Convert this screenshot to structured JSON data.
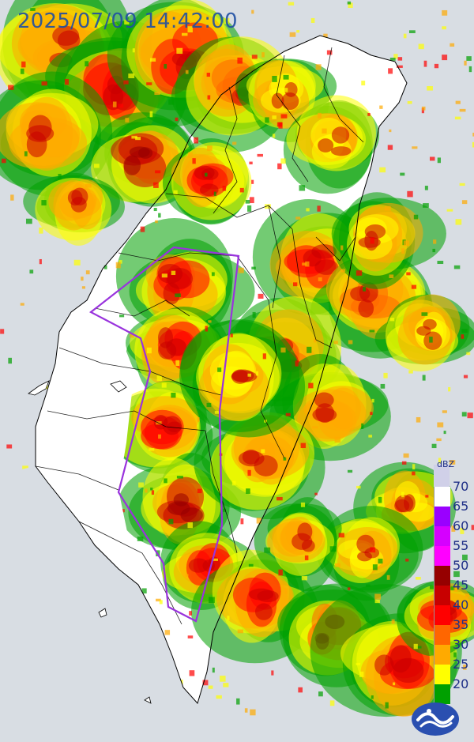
{
  "timestamp": "2025/07/09 14:42:00",
  "legend": {
    "unit": "dBZ",
    "levels": [
      {
        "label": "70",
        "color": "#ffffff"
      },
      {
        "label": "65",
        "color": "#9a00ff"
      },
      {
        "label": "60",
        "color": "#d500ff"
      },
      {
        "label": "55",
        "color": "#ff00ff"
      },
      {
        "label": "50",
        "color": "#960000"
      },
      {
        "label": "45",
        "color": "#c80000"
      },
      {
        "label": "40",
        "color": "#ff0000"
      },
      {
        "label": "35",
        "color": "#ff6600"
      },
      {
        "label": "30",
        "color": "#ffaa00"
      },
      {
        "label": "25",
        "color": "#ffff00"
      },
      {
        "label": "20",
        "color": "#00a000"
      }
    ],
    "top_color": "#d0d0e8"
  },
  "colors": {
    "sea": "#d8dde3",
    "land": "#ffffff",
    "border": "#000000",
    "warning_outline": "#9933dd",
    "timestamp": "#1f4fa3",
    "logo": "#2a4fb0"
  },
  "warning_area": {
    "vertices": [
      [
        220,
        313
      ],
      [
        302,
        324
      ],
      [
        278,
        520
      ],
      [
        281,
        665
      ],
      [
        248,
        786
      ],
      [
        213,
        768
      ],
      [
        207,
        713
      ],
      [
        150,
        623
      ],
      [
        190,
        470
      ],
      [
        178,
        428
      ],
      [
        115,
        395
      ]
    ]
  },
  "logo_icon": "cwa-emblem-icon"
}
